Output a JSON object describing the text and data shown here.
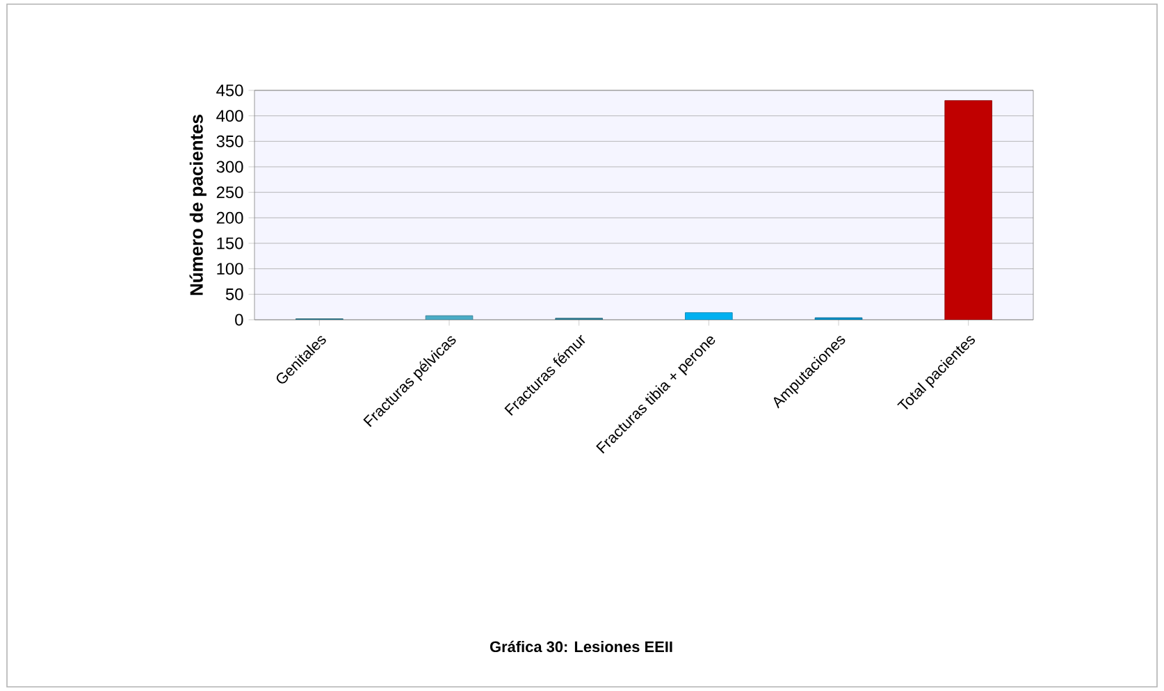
{
  "chart_data": {
    "type": "bar",
    "title": "Gráfica 30: Lesiones EEII",
    "ylabel": "Número de pacientes",
    "categories": [
      "Genitales",
      "Fracturas pélvicas",
      "Fracturas fémur",
      "Fracturas tibia + perone",
      "Amputaciones",
      "Total pacientes"
    ],
    "values": [
      2,
      8,
      3,
      14,
      4,
      430
    ],
    "colors": [
      "#31859c",
      "#4bacc6",
      "#31859c",
      "#00b0f0",
      "#0091c8",
      "#c00000"
    ],
    "ylim": [
      0,
      450
    ],
    "yticks": [
      0,
      50,
      100,
      150,
      200,
      250,
      300,
      350,
      400,
      450
    ],
    "grid": "y"
  }
}
